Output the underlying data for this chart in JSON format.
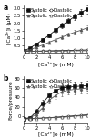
{
  "x": [
    0,
    1,
    2,
    3,
    4,
    5,
    6,
    7,
    8,
    9,
    10
  ],
  "panel_a": {
    "title": "a",
    "ylabel": "[Ca²⁺]i (µM)",
    "xlabel": "[Ca²⁺]o (mM)",
    "series": [
      {
        "label": "Systolic",
        "marker": "s",
        "filled": true,
        "color": "#111111",
        "y": [
          0.1,
          0.32,
          0.58,
          0.88,
          1.18,
          1.52,
          1.85,
          2.15,
          2.45,
          2.72,
          2.95
        ],
        "yerr": [
          0.02,
          0.05,
          0.08,
          0.1,
          0.12,
          0.14,
          0.18,
          0.2,
          0.22,
          0.25,
          0.28
        ]
      },
      {
        "label": "Systolic",
        "marker": "^",
        "filled": true,
        "color": "#555555",
        "y": [
          0.1,
          0.2,
          0.36,
          0.52,
          0.7,
          0.88,
          1.05,
          1.22,
          1.38,
          1.52,
          1.68
        ],
        "yerr": [
          0.02,
          0.04,
          0.06,
          0.08,
          0.09,
          0.1,
          0.12,
          0.13,
          0.14,
          0.15,
          0.16
        ]
      },
      {
        "label": "Diastolic",
        "marker": "o",
        "filled": false,
        "color": "#111111",
        "y": [
          0.08,
          0.09,
          0.1,
          0.11,
          0.12,
          0.13,
          0.14,
          0.15,
          0.16,
          0.17,
          0.18
        ],
        "yerr": [
          0.01,
          0.01,
          0.01,
          0.01,
          0.01,
          0.01,
          0.01,
          0.01,
          0.01,
          0.01,
          0.01
        ]
      },
      {
        "label": "Diastolic",
        "marker": "^",
        "filled": false,
        "color": "#555555",
        "y": [
          0.08,
          0.09,
          0.09,
          0.1,
          0.1,
          0.11,
          0.11,
          0.12,
          0.12,
          0.13,
          0.13
        ],
        "yerr": [
          0.01,
          0.01,
          0.01,
          0.01,
          0.01,
          0.01,
          0.01,
          0.01,
          0.01,
          0.01,
          0.01
        ]
      }
    ],
    "ylim": [
      0,
      3.2
    ],
    "yticks": [
      0.5,
      1.0,
      1.5,
      2.0,
      2.5,
      3.0
    ],
    "yticklabels": [
      "0.5",
      "1.0",
      "1.5",
      "2.0",
      "2.5",
      "3.0"
    ]
  },
  "panel_b": {
    "title": "b",
    "ylabel": "Force/pressure",
    "xlabel": "[Ca²⁺]o (mM)",
    "series": [
      {
        "label": "Systolic",
        "marker": "s",
        "filled": true,
        "color": "#111111",
        "y": [
          -5,
          -3,
          10,
          28,
          44,
          54,
          60,
          62,
          63,
          64,
          65
        ],
        "yerr": [
          2,
          3,
          5,
          6,
          7,
          8,
          9,
          9,
          10,
          10,
          11
        ]
      },
      {
        "label": "Systolic",
        "marker": "^",
        "filled": true,
        "color": "#555555",
        "y": [
          -5,
          -4,
          5,
          18,
          34,
          44,
          52,
          55,
          57,
          58,
          60
        ],
        "yerr": [
          2,
          3,
          5,
          6,
          7,
          8,
          9,
          9,
          10,
          10,
          11
        ]
      },
      {
        "label": "Diastolic",
        "marker": "o",
        "filled": false,
        "color": "#111111",
        "y": [
          -5,
          -5,
          -4,
          -4,
          -3,
          -2,
          -1,
          0,
          1,
          2,
          3
        ],
        "yerr": [
          1,
          1,
          1,
          1,
          1,
          1,
          1,
          1,
          1,
          1,
          1
        ]
      },
      {
        "label": "Diastolic",
        "marker": "^",
        "filled": false,
        "color": "#555555",
        "y": [
          -6,
          -5,
          -5,
          -4,
          -3,
          -3,
          -2,
          -1,
          0,
          1,
          2
        ],
        "yerr": [
          1,
          1,
          1,
          1,
          1,
          1,
          1,
          1,
          1,
          1,
          1
        ]
      }
    ],
    "ylim": [
      -15,
      85
    ],
    "yticks": [
      0,
      20,
      40,
      60,
      80
    ],
    "yticklabels": [
      "0",
      "20",
      "40",
      "60",
      "80"
    ]
  },
  "xlim": [
    0,
    10
  ],
  "xticks": [
    0,
    2,
    4,
    6,
    8,
    10
  ],
  "background_color": "#ffffff",
  "label_fontsize": 4.2,
  "tick_fontsize": 3.8,
  "legend_fontsize": 3.5,
  "ms": 2.2,
  "lw": 0.6,
  "capsize": 1.0,
  "elinewidth": 0.4
}
